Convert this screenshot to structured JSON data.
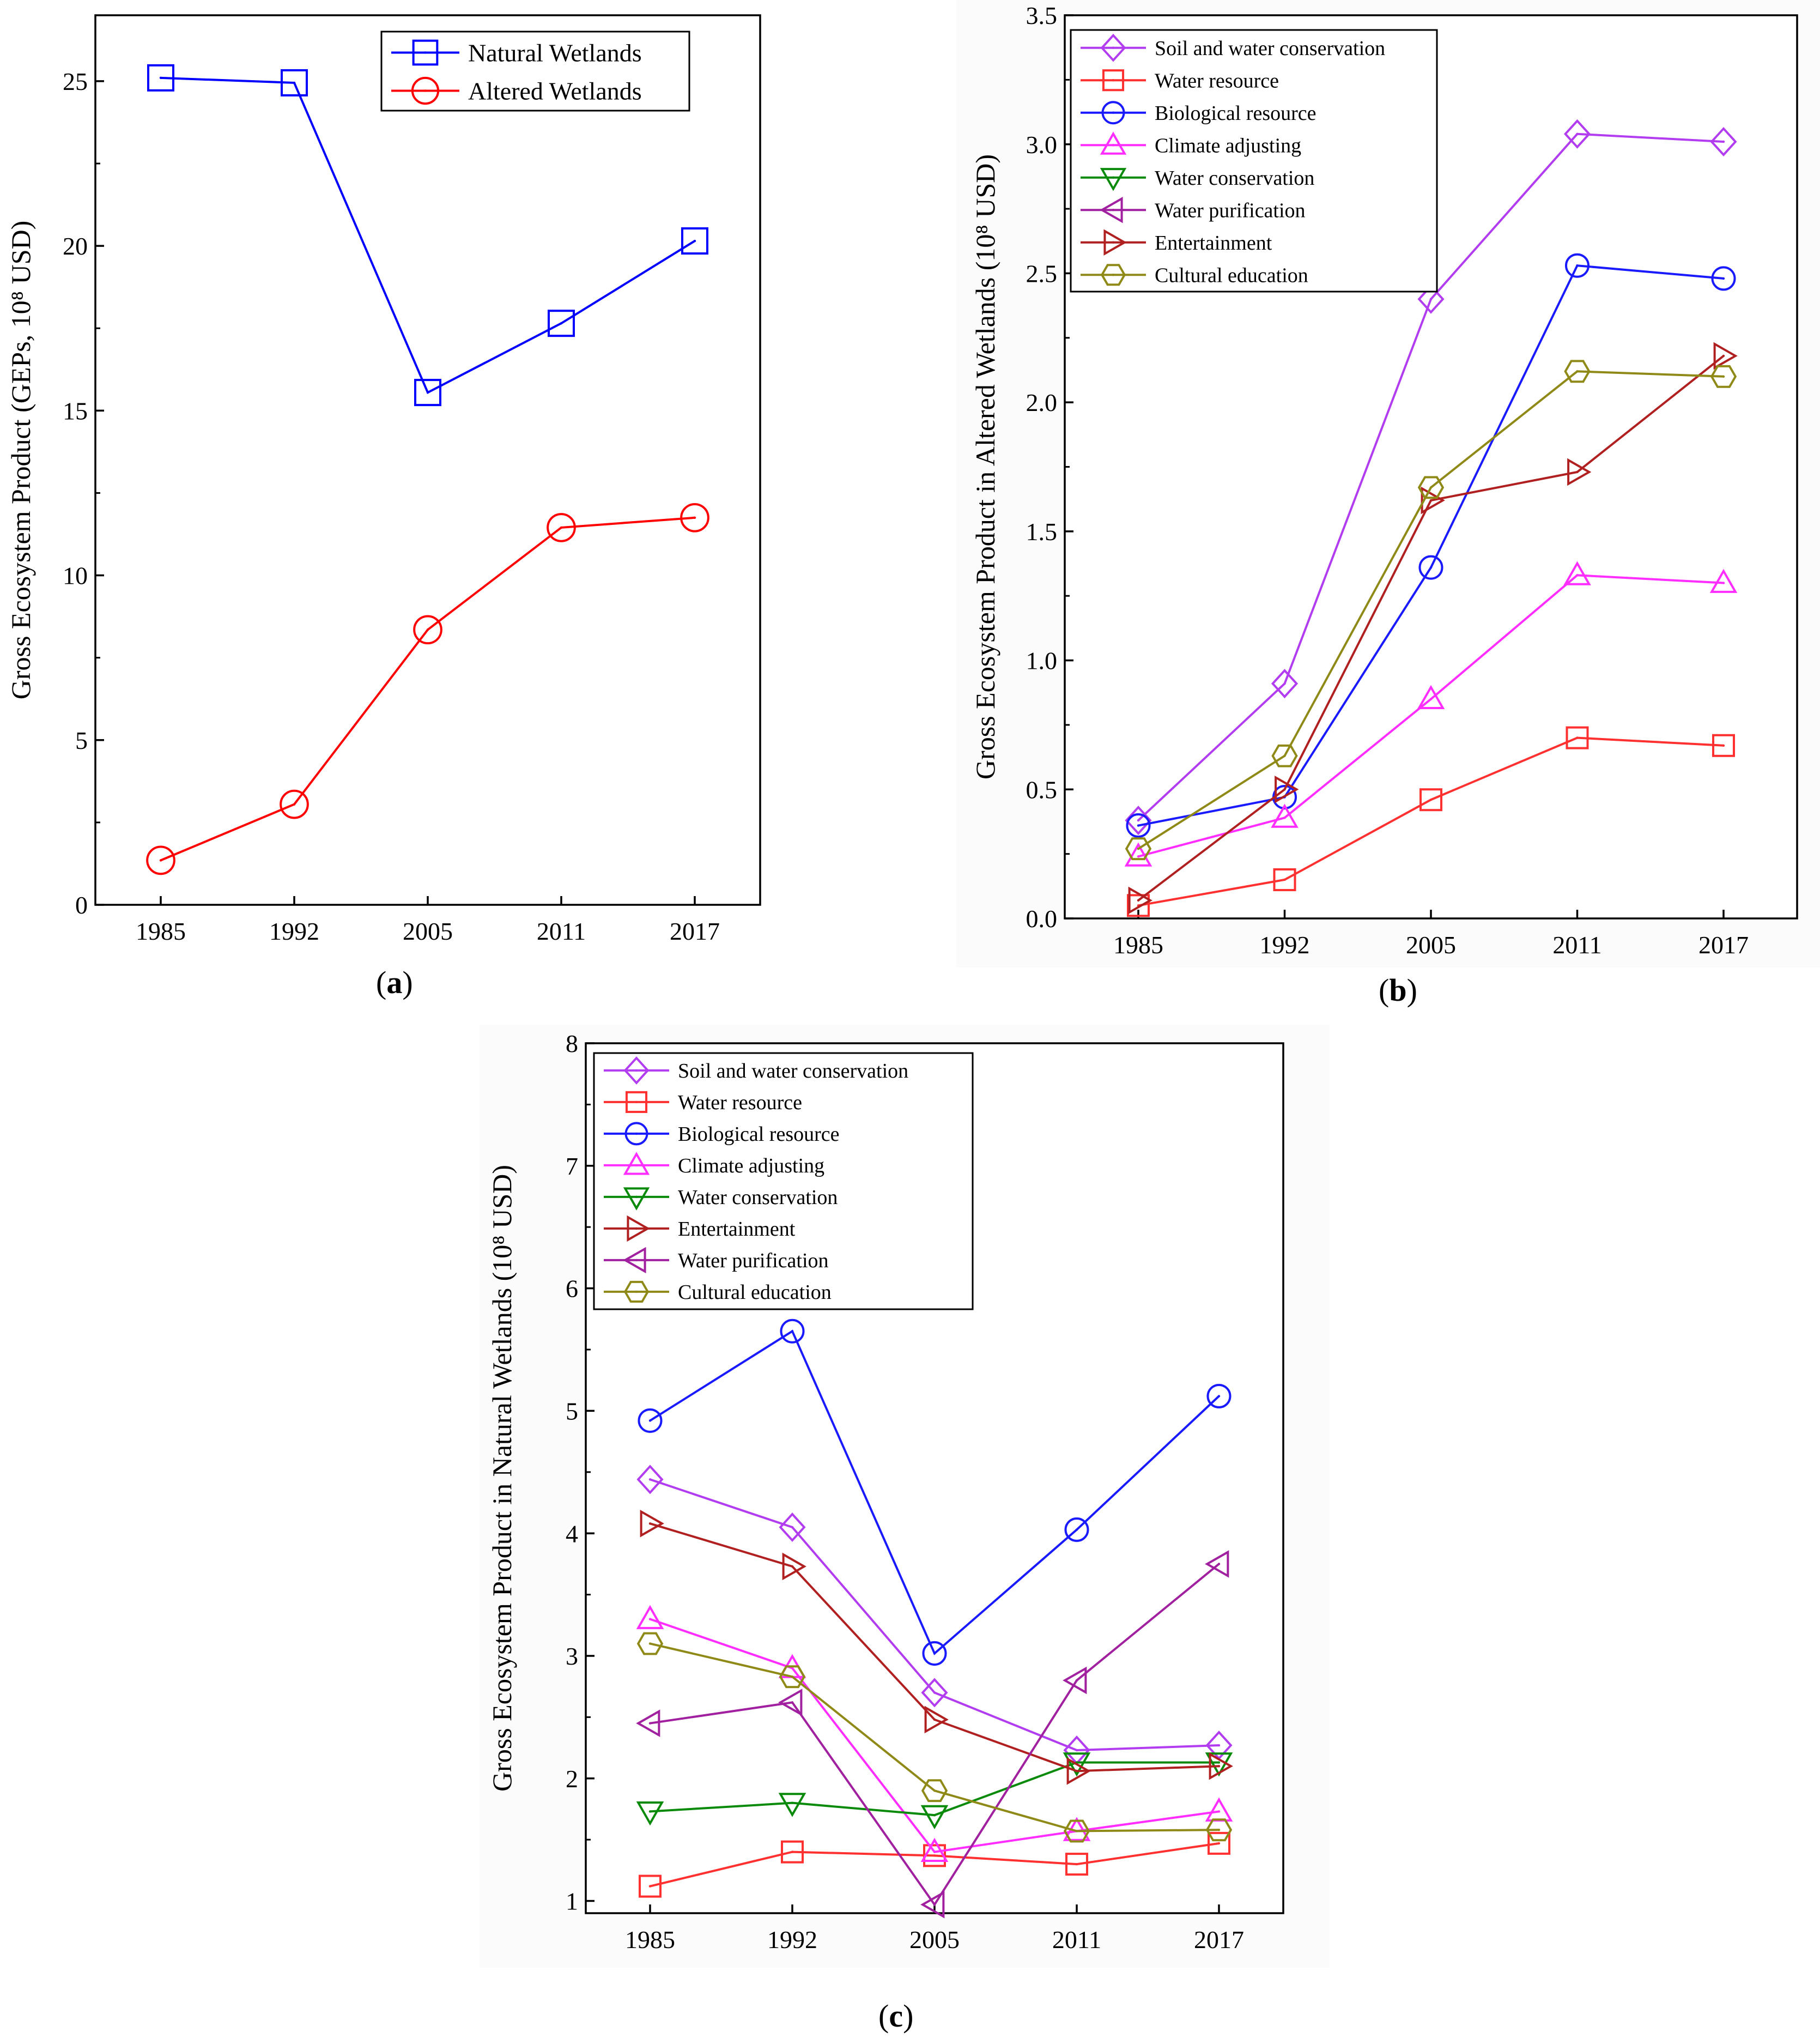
{
  "chart_data": [
    {
      "id": "a",
      "panel_label": "a",
      "type": "line",
      "xlabel": "",
      "ylabel": "Gross Ecosystem Product (GEPs, 10⁸ USD)",
      "categories": [
        "1985",
        "1992",
        "2005",
        "2011",
        "2017"
      ],
      "ylim": [
        0,
        27
      ],
      "yticks": [
        0,
        5,
        10,
        15,
        20,
        25
      ],
      "legend_position": "top-right",
      "series": [
        {
          "name": "Natural Wetlands",
          "color": "#0000ff",
          "marker": "square",
          "values": [
            25.1,
            24.95,
            15.55,
            17.65,
            20.15
          ]
        },
        {
          "name": "Altered Wetlands",
          "color": "#ff0000",
          "marker": "circle",
          "values": [
            1.35,
            3.05,
            8.35,
            11.45,
            11.75
          ]
        }
      ]
    },
    {
      "id": "b",
      "panel_label": "b",
      "type": "line",
      "xlabel": "",
      "ylabel": "Gross Ecosystem Product  in Altered Wetlands (10⁸ USD)",
      "categories": [
        "1985",
        "1992",
        "2005",
        "2011",
        "2017"
      ],
      "ylim": [
        0,
        3.5
      ],
      "yticks": [
        "0.0",
        "0.5",
        "1.0",
        "1.5",
        "2.0",
        "2.5",
        "3.0",
        "3.5"
      ],
      "legend_position": "top-left",
      "series": [
        {
          "name": "Soil and water  conservation",
          "color": "#b23cf0",
          "marker": "diamond",
          "values": [
            0.38,
            0.91,
            2.4,
            3.04,
            3.01
          ]
        },
        {
          "name": "Water resource",
          "color": "#ff3030",
          "marker": "square",
          "values": [
            0.05,
            0.15,
            0.46,
            0.7,
            0.67
          ]
        },
        {
          "name": "Biological resource",
          "color": "#1a1aff",
          "marker": "circle",
          "values": [
            0.36,
            0.47,
            1.36,
            2.53,
            2.48
          ]
        },
        {
          "name": "Climate adjusting",
          "color": "#ff2dff",
          "marker": "triangle-up",
          "values": [
            0.24,
            0.39,
            0.85,
            1.33,
            1.3
          ]
        },
        {
          "name": "Water conservation",
          "color": "#0a8a0a",
          "marker": "triangle-down",
          "values": [
            null,
            null,
            null,
            null,
            null
          ]
        },
        {
          "name": "Water purification",
          "color": "#a0209f",
          "marker": "triangle-left",
          "values": [
            null,
            null,
            null,
            null,
            null
          ]
        },
        {
          "name": "Entertainment",
          "color": "#b02020",
          "marker": "triangle-right",
          "values": [
            0.07,
            0.5,
            1.62,
            1.73,
            2.18
          ]
        },
        {
          "name": "Cultural education",
          "color": "#8f8a18",
          "marker": "hexagon",
          "values": [
            0.27,
            0.63,
            1.67,
            2.12,
            2.1
          ]
        }
      ]
    },
    {
      "id": "c",
      "panel_label": "c",
      "type": "line",
      "xlabel": "",
      "ylabel": "Gross Ecosystem Product in Natural Wetlands (10⁸ USD)",
      "categories": [
        "1985",
        "1992",
        "2005",
        "2011",
        "2017"
      ],
      "ylim": [
        0.9,
        8
      ],
      "yticks": [
        1,
        2,
        3,
        4,
        5,
        6,
        7,
        8
      ],
      "legend_position": "top-left",
      "series": [
        {
          "name": "Soil and water  conservation",
          "color": "#b23cf0",
          "marker": "diamond",
          "values": [
            4.44,
            4.05,
            2.7,
            2.23,
            2.27
          ]
        },
        {
          "name": "Water resource",
          "color": "#ff3030",
          "marker": "square",
          "values": [
            1.12,
            1.4,
            1.37,
            1.3,
            1.47
          ]
        },
        {
          "name": "Biological resource",
          "color": "#1a1aff",
          "marker": "circle",
          "values": [
            4.92,
            5.65,
            3.02,
            4.03,
            5.12
          ]
        },
        {
          "name": "Climate adjusting",
          "color": "#ff2dff",
          "marker": "triangle-up",
          "values": [
            3.3,
            2.9,
            1.4,
            1.57,
            1.73
          ]
        },
        {
          "name": "Water conservation",
          "color": "#0a8a0a",
          "marker": "triangle-down",
          "values": [
            1.73,
            1.8,
            1.7,
            2.13,
            2.13
          ]
        },
        {
          "name": "Entertainment",
          "color": "#b02020",
          "marker": "triangle-right",
          "values": [
            4.08,
            3.73,
            2.48,
            2.06,
            2.1
          ]
        },
        {
          "name": "Water purification",
          "color": "#a0209f",
          "marker": "triangle-left",
          "values": [
            2.45,
            2.62,
            0.97,
            2.8,
            3.75
          ]
        },
        {
          "name": "Cultural education",
          "color": "#8f8a18",
          "marker": "hexagon",
          "values": [
            3.1,
            2.83,
            1.9,
            1.57,
            1.58
          ]
        }
      ]
    }
  ]
}
